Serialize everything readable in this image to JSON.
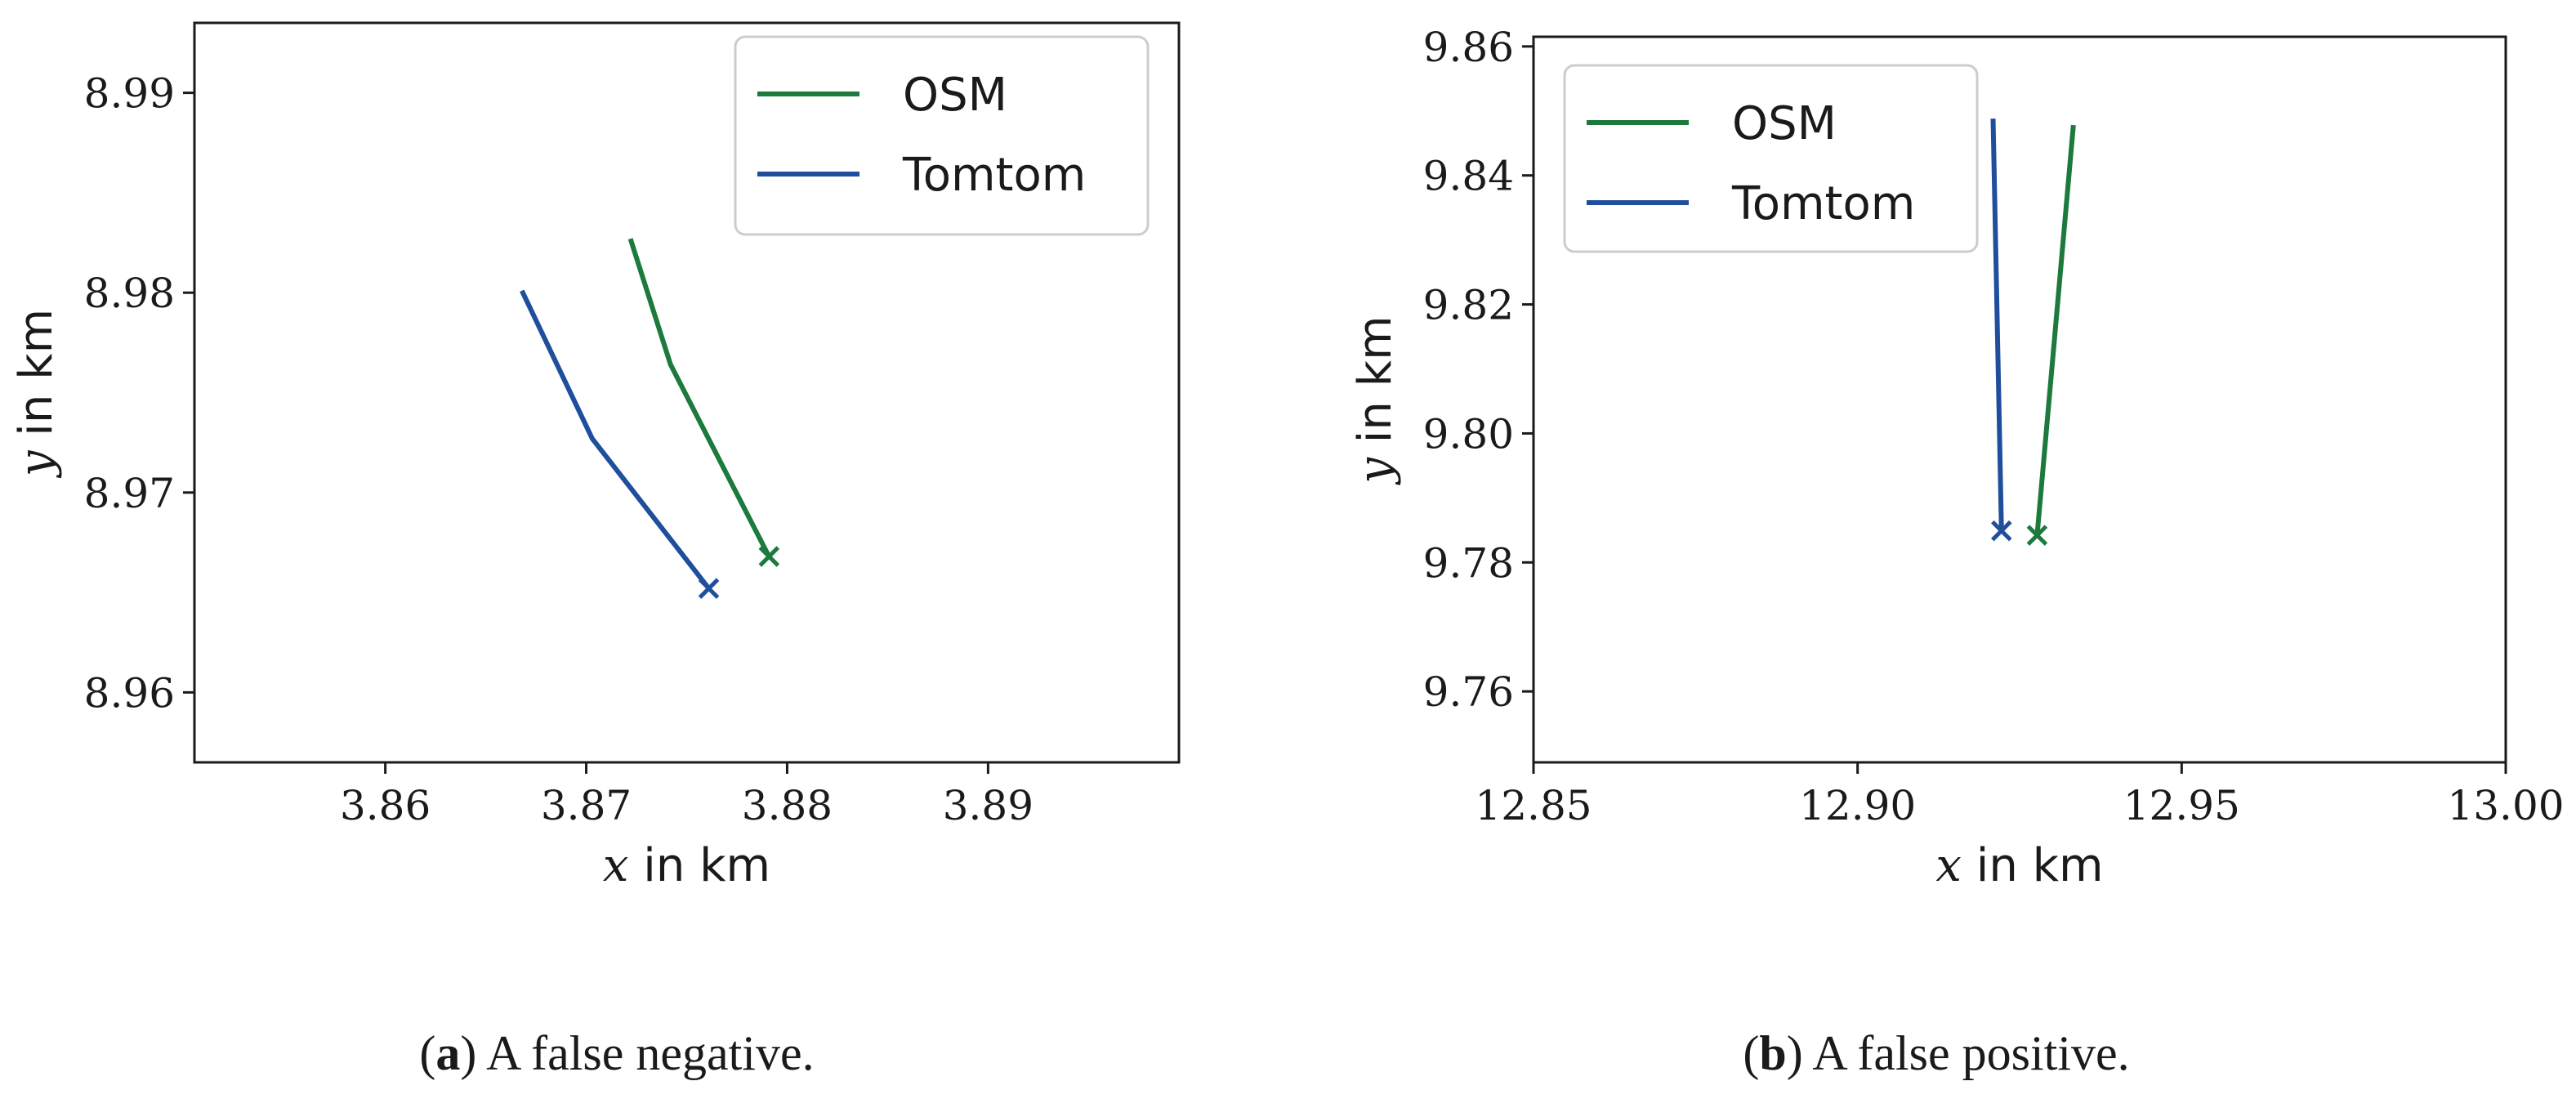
{
  "chart_data": [
    {
      "type": "line",
      "id": "a",
      "xlabel_var": "x",
      "xlabel_unit": " in km",
      "ylabel_var": "y",
      "ylabel_unit": " in km",
      "xlim": [
        3.8505,
        3.8995
      ],
      "ylim": [
        8.9565,
        8.9935
      ],
      "xticks": [
        3.86,
        3.87,
        3.88,
        3.89
      ],
      "xtick_labels": [
        "3.86",
        "3.87",
        "3.88",
        "3.89"
      ],
      "yticks": [
        8.96,
        8.97,
        8.98,
        8.99
      ],
      "ytick_labels": [
        "8.96",
        "8.97",
        "8.98",
        "8.99"
      ],
      "legend_position": "top-right",
      "series": [
        {
          "name": "OSM",
          "color": "#1b7a3c",
          "x": [
            3.8722,
            3.8742,
            3.8791
          ],
          "y": [
            8.9827,
            8.9764,
            8.9668
          ],
          "end_marker": "x"
        },
        {
          "name": "Tomtom",
          "color": "#1f4e9c",
          "x": [
            3.8668,
            3.8703,
            3.8761
          ],
          "y": [
            8.9801,
            8.9727,
            8.9652
          ],
          "end_marker": "x"
        }
      ],
      "caption_label": "a",
      "caption_text": " A false negative."
    },
    {
      "type": "line",
      "id": "b",
      "xlabel_var": "x",
      "xlabel_unit": " in km",
      "ylabel_var": "y",
      "ylabel_unit": " in km",
      "xlim": [
        12.85,
        13.0
      ],
      "ylim": [
        9.749,
        9.8615
      ],
      "xticks": [
        12.85,
        12.9,
        12.95,
        13.0
      ],
      "xtick_labels": [
        "12.85",
        "12.90",
        "12.95",
        "13.00"
      ],
      "yticks": [
        9.76,
        9.78,
        9.8,
        9.82,
        9.84,
        9.86
      ],
      "ytick_labels": [
        "9.76",
        "9.78",
        "9.80",
        "9.82",
        "9.84",
        "9.86"
      ],
      "legend_position": "top-left",
      "series": [
        {
          "name": "OSM",
          "color": "#1b7a3c",
          "x": [
            12.9333,
            12.9277
          ],
          "y": [
            9.8478,
            9.7842
          ],
          "end_marker": "x"
        },
        {
          "name": "Tomtom",
          "color": "#1f4e9c",
          "x": [
            12.9209,
            12.9222
          ],
          "y": [
            9.8488,
            9.7849
          ],
          "end_marker": "x"
        }
      ],
      "caption_label": "b",
      "caption_text": " A false positive."
    }
  ]
}
